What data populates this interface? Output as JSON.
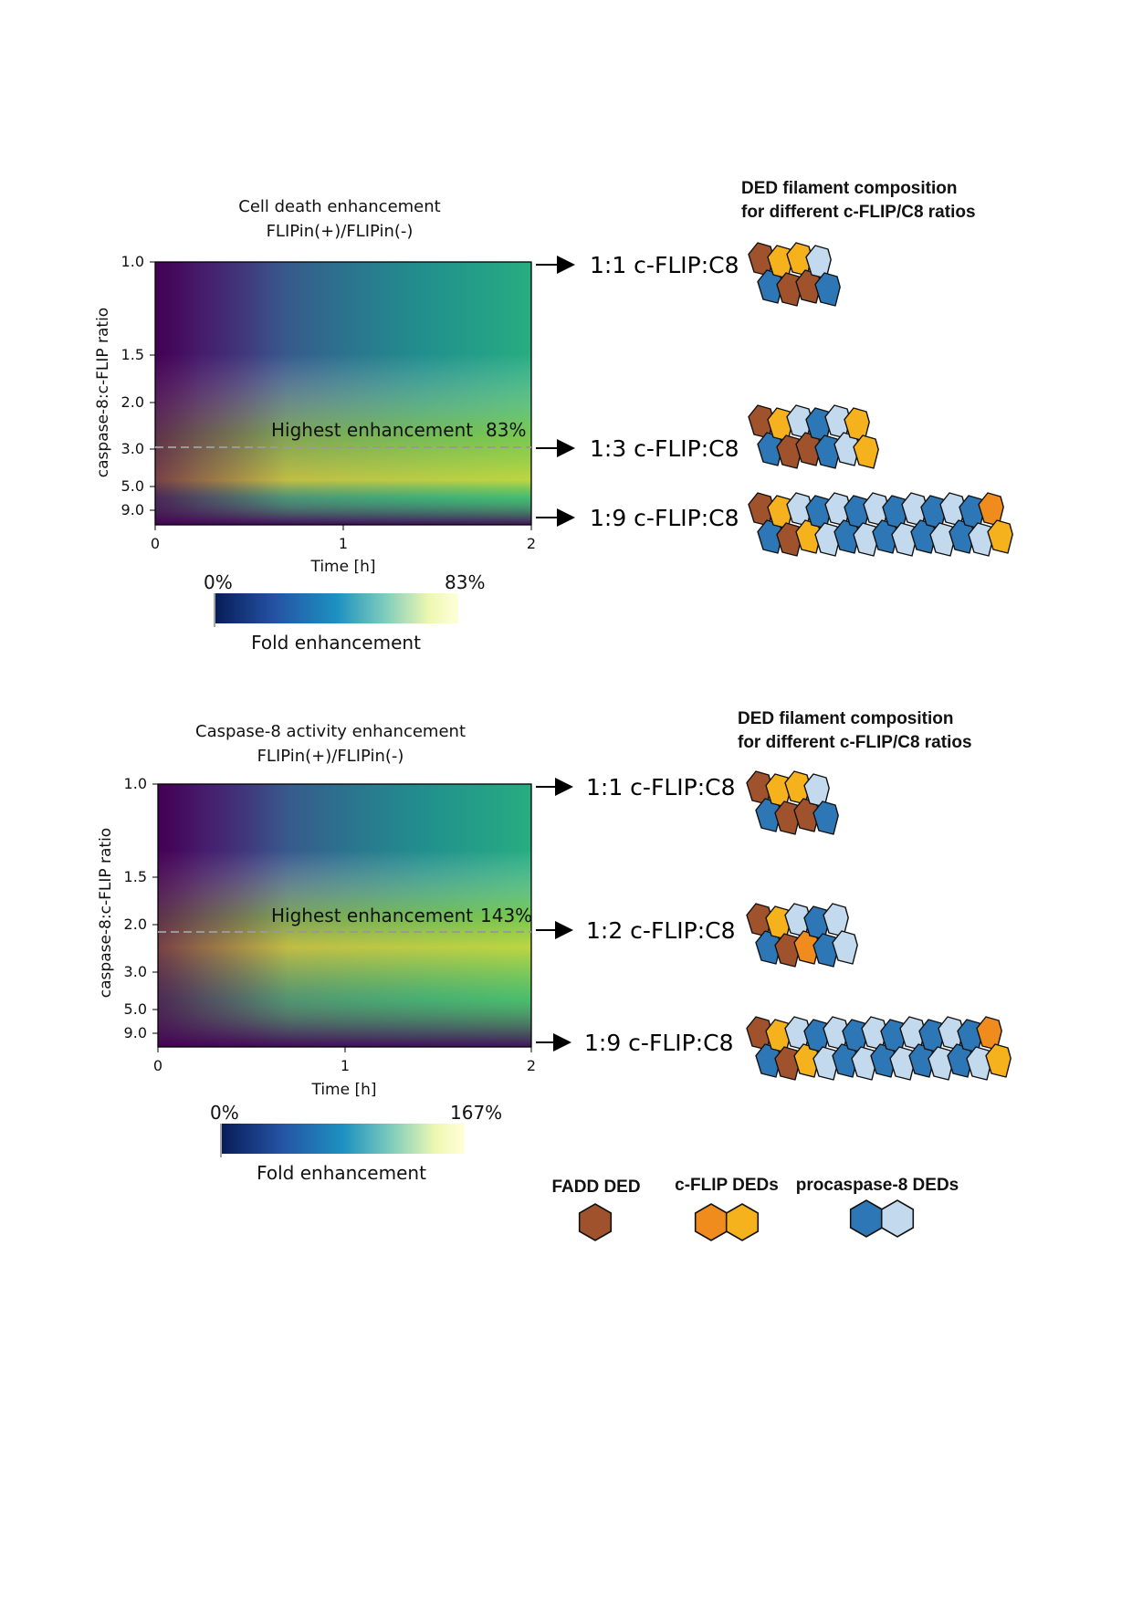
{
  "chart_data": [
    {
      "type": "heatmap",
      "title": "Cell death enhancement",
      "subtitle": "FLIPin(+)/FLIPin(-)",
      "xlabel": "Time [h]",
      "ylabel": "caspase-8:c-FLIP ratio",
      "xlim": [
        0,
        2
      ],
      "x_ticks": [
        "0",
        "1",
        "2"
      ],
      "y_ticks": [
        "1.0",
        "1.5",
        "2.0",
        "3.0",
        "5.0",
        "9.0"
      ],
      "colormap": "viridis",
      "highlight": {
        "label": "Highest enhancement",
        "value": "83%",
        "ratio": 3.0
      },
      "colorbar": {
        "min_label": "0%",
        "max_label": "83%",
        "label": "Fold enhancement",
        "colormap": "YlGnBu"
      },
      "arrows": [
        "1:1 c-FLIP:C8",
        "1:3 c-FLIP:C8",
        "1:9 c-FLIP:C8"
      ]
    },
    {
      "type": "heatmap",
      "title": "Caspase-8 activity enhancement",
      "subtitle": "FLIPin(+)/FLIPin(-)",
      "xlabel": "Time [h]",
      "ylabel": "caspase-8:c-FLIP ratio",
      "xlim": [
        0,
        2
      ],
      "x_ticks": [
        "0",
        "1",
        "2"
      ],
      "y_ticks": [
        "1.0",
        "1.5",
        "2.0",
        "3.0",
        "5.0",
        "9.0"
      ],
      "colormap": "viridis",
      "highlight": {
        "label": "Highest enhancement",
        "value": "143%",
        "ratio": 2.0
      },
      "colorbar": {
        "min_label": "0%",
        "max_label": "167%",
        "label": "Fold enhancement",
        "colormap": "YlGnBu"
      },
      "arrows": [
        "1:1 c-FLIP:C8",
        "1:2 c-FLIP:C8",
        "1:9 c-FLIP:C8"
      ]
    }
  ],
  "filament": {
    "heading_line1": "DED filament composition",
    "heading_line2": "for different c-FLIP/C8 ratios"
  },
  "legend": {
    "fadd": "FADD DED",
    "cflip": "c-FLIP DEDs",
    "casp8": "procaspase-8 DEDs"
  },
  "colors": {
    "fadd": "#a0522d",
    "cflip_dark": "#f08c1e",
    "cflip_light": "#f5b21c",
    "casp8_dark": "#2e77b7",
    "casp8_light": "#c2d9ee",
    "casp8_mid": "#8fb9dc",
    "highlight_line": "#999999"
  }
}
